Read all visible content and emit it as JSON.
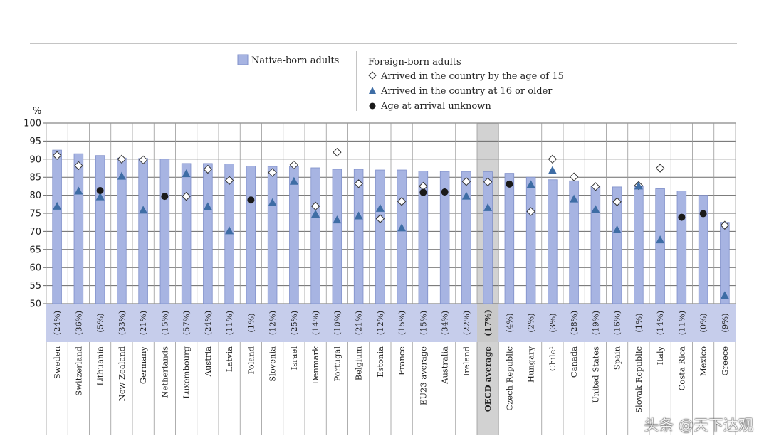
{
  "chart_data": {
    "type": "bar",
    "ylabel": "%",
    "ylim": [
      50,
      100
    ],
    "yticks": [
      50,
      55,
      60,
      65,
      70,
      75,
      80,
      85,
      90,
      95,
      100
    ],
    "legend": {
      "native_label": "Native-born adults",
      "foreign_title": "Foreign-born adults",
      "arrived_by_15": "Arrived in the country by the age of 15",
      "arrived_16_older": "Arrived in the country at 16 or older",
      "age_unknown": "Age at arrival unknown"
    },
    "categories": [
      "Sweden",
      "Switzerland",
      "Lithuania",
      "New Zealand",
      "Germany",
      "Netherlands",
      "Luxembourg",
      "Austria",
      "Latvia",
      "Poland",
      "Slovenia",
      "Israel",
      "Denmark",
      "Portugal",
      "Belgium",
      "Estonia",
      "France",
      "EU23 average",
      "Australia",
      "Ireland",
      "OECD average",
      "Czech Republic",
      "Hungary",
      "Chile¹",
      "Canada",
      "United States",
      "Spain",
      "Slovak Republic",
      "Italy",
      "Costa Rica",
      "Mexico",
      "Greece"
    ],
    "foreign_share": [
      "(24%)",
      "(36%)",
      "(5%)",
      "(33%)",
      "(21%)",
      "(15%)",
      "(57%)",
      "(24%)",
      "(11%)",
      "(1%)",
      "(12%)",
      "(25%)",
      "(14%)",
      "(10%)",
      "(21%)",
      "(12%)",
      "(15%)",
      "(15%)",
      "(34%)",
      "(22%)",
      "(17%)",
      "(4%)",
      "(2%)",
      "(3%)",
      "(28%)",
      "(19%)",
      "(16%)",
      "(1%)",
      "(14%)",
      "(11%)",
      "(0%)",
      "(9%)"
    ],
    "highlighted_category": "OECD average",
    "series": [
      {
        "name": "Native-born adults",
        "marker": "bar",
        "values": [
          92.5,
          91.5,
          91,
          90.3,
          90.2,
          90,
          88.8,
          88.8,
          88.7,
          88.1,
          88,
          88,
          87.6,
          87.2,
          87.2,
          87,
          87,
          86.7,
          86.6,
          86.6,
          86.5,
          86.1,
          85,
          84.3,
          84,
          82.5,
          82.3,
          82.4,
          81.8,
          81.2,
          80,
          72.5
        ]
      },
      {
        "name": "Arrived in the country by the age of 15",
        "marker": "diamond",
        "values": [
          91,
          88.2,
          null,
          90,
          89.8,
          null,
          79.7,
          87.2,
          84.1,
          null,
          86.3,
          88.4,
          77,
          91.9,
          83.2,
          73.5,
          78.3,
          82.5,
          null,
          83.8,
          83.7,
          null,
          75.5,
          90,
          85.1,
          82.4,
          78.2,
          82.7,
          87.5,
          null,
          null,
          71.7
        ]
      },
      {
        "name": "Arrived in the country at 16 or older",
        "marker": "triangle",
        "values": [
          77,
          81.2,
          79.6,
          85.3,
          75.9,
          null,
          86,
          76.9,
          70.2,
          null,
          78,
          83.9,
          74.8,
          73.2,
          74.3,
          76.4,
          71,
          null,
          null,
          79.8,
          76.6,
          null,
          83,
          86.9,
          79,
          76.1,
          70.5,
          82.6,
          67.7,
          null,
          null,
          52.3
        ]
      },
      {
        "name": "Age at arrival unknown",
        "marker": "circle",
        "values": [
          null,
          null,
          81.3,
          null,
          null,
          79.7,
          null,
          null,
          null,
          78.7,
          null,
          null,
          null,
          null,
          null,
          null,
          null,
          80.8,
          80.9,
          null,
          null,
          83.1,
          null,
          null,
          null,
          null,
          null,
          null,
          null,
          73.9,
          74.9,
          null
        ]
      }
    ]
  },
  "watermark": "头条 @天下达观",
  "colors": {
    "bar_fill": "#a7b4e2",
    "bar_stroke": "#7f8fc9",
    "band_fill": "#c6cdeb",
    "highlight_fill": "#d2d2d2",
    "triangle": "#3e6da5",
    "circle": "#1a1a1a",
    "grid": "#6a6a6a"
  }
}
